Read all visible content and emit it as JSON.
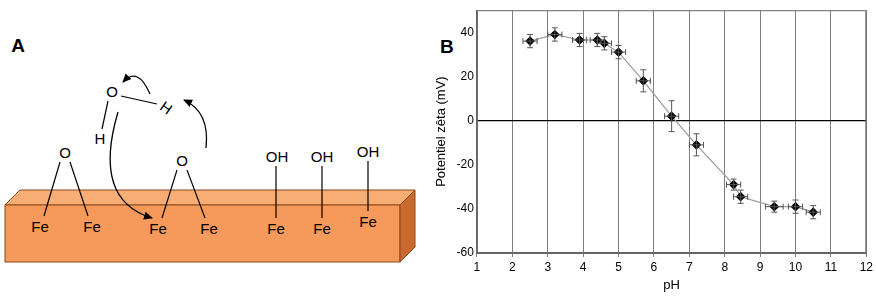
{
  "diagram": {
    "label": "A",
    "water": [
      "O",
      "H",
      "H"
    ],
    "surface_groups": [
      {
        "top": "O",
        "bottom": [
          "Fe",
          "Fe"
        ]
      },
      {
        "top": "O",
        "bottom": [
          "Fe",
          "Fe"
        ]
      },
      {
        "top": "OH",
        "bottom": [
          "Fe"
        ]
      },
      {
        "top": "OH",
        "bottom": [
          "Fe"
        ]
      },
      {
        "top": "OH",
        "bottom": [
          "Fe"
        ]
      }
    ]
  },
  "chart_data": {
    "type": "line",
    "title": "B",
    "x_label": "pH",
    "y_label": "Potentiel zêta (mV)",
    "x": [
      2.5,
      3.2,
      3.9,
      4.4,
      4.6,
      5.0,
      5.7,
      6.5,
      7.2,
      8.25,
      8.45,
      9.4,
      10.0,
      10.5
    ],
    "values": [
      36,
      39,
      36.5,
      36.5,
      35,
      31,
      18,
      2,
      -11,
      -29,
      -34.5,
      -39,
      -39,
      -41.5
    ],
    "x_error": [
      0.2,
      0.2,
      0.2,
      0.2,
      0.2,
      0.2,
      0.2,
      0.2,
      0.2,
      0.2,
      0.2,
      0.25,
      0.2,
      0.2
    ],
    "y_error": [
      3,
      3,
      3,
      3,
      3,
      3,
      5,
      7,
      5,
      2.5,
      3,
      2.5,
      3,
      3
    ],
    "color": "#000000",
    "marker": "diamond",
    "xlim": [
      1,
      12
    ],
    "xticks": [
      1,
      2,
      3,
      4,
      5,
      6,
      7,
      8,
      9,
      10,
      11,
      12
    ],
    "ylim": [
      -60,
      50
    ],
    "yticks": [
      -60,
      -40,
      -20,
      0,
      20,
      40
    ],
    "grid": true
  }
}
